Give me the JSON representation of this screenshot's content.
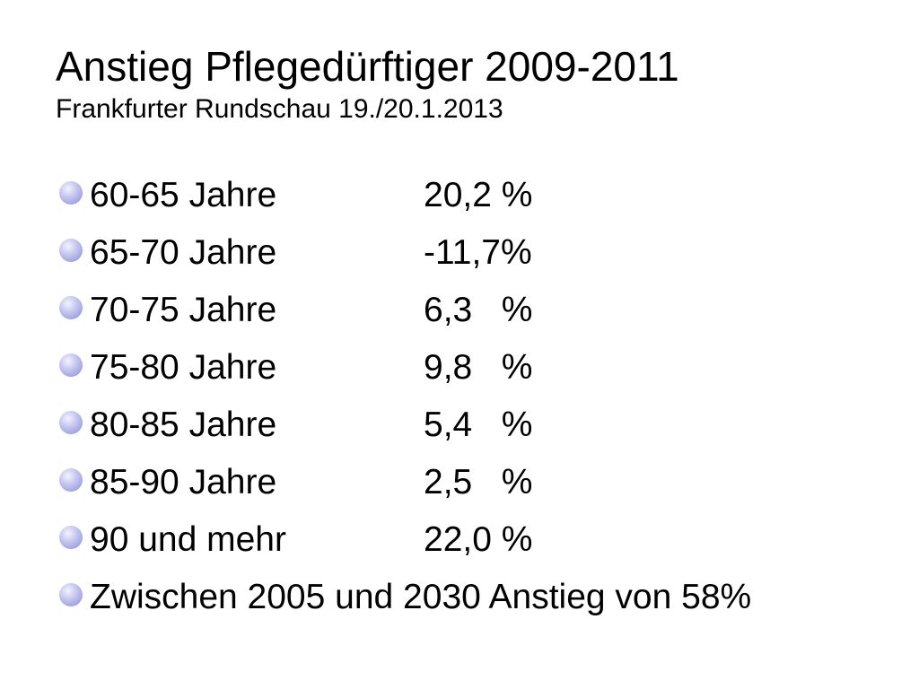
{
  "slide": {
    "title": "Anstieg Pflegedürftiger 2009-2011",
    "subtitle": "Frankfurter Rundschau 19./20.1.2013",
    "rows": [
      {
        "label": "60-65 Jahre",
        "value": "20,2 %"
      },
      {
        "label": "65-70 Jahre",
        "value": "-11,7%"
      },
      {
        "label": "70-75 Jahre",
        "value": "6,3   %"
      },
      {
        "label": "75-80 Jahre",
        "value": "9,8   %"
      },
      {
        "label": "80-85 Jahre",
        "value": "5,4   %"
      },
      {
        "label": "85-90 Jahre",
        "value": "2,5   %"
      },
      {
        "label": "90 und mehr",
        "value": "22,0 %"
      }
    ],
    "footer_bullet": "Zwischen 2005 und 2030 Anstieg von 58%"
  }
}
